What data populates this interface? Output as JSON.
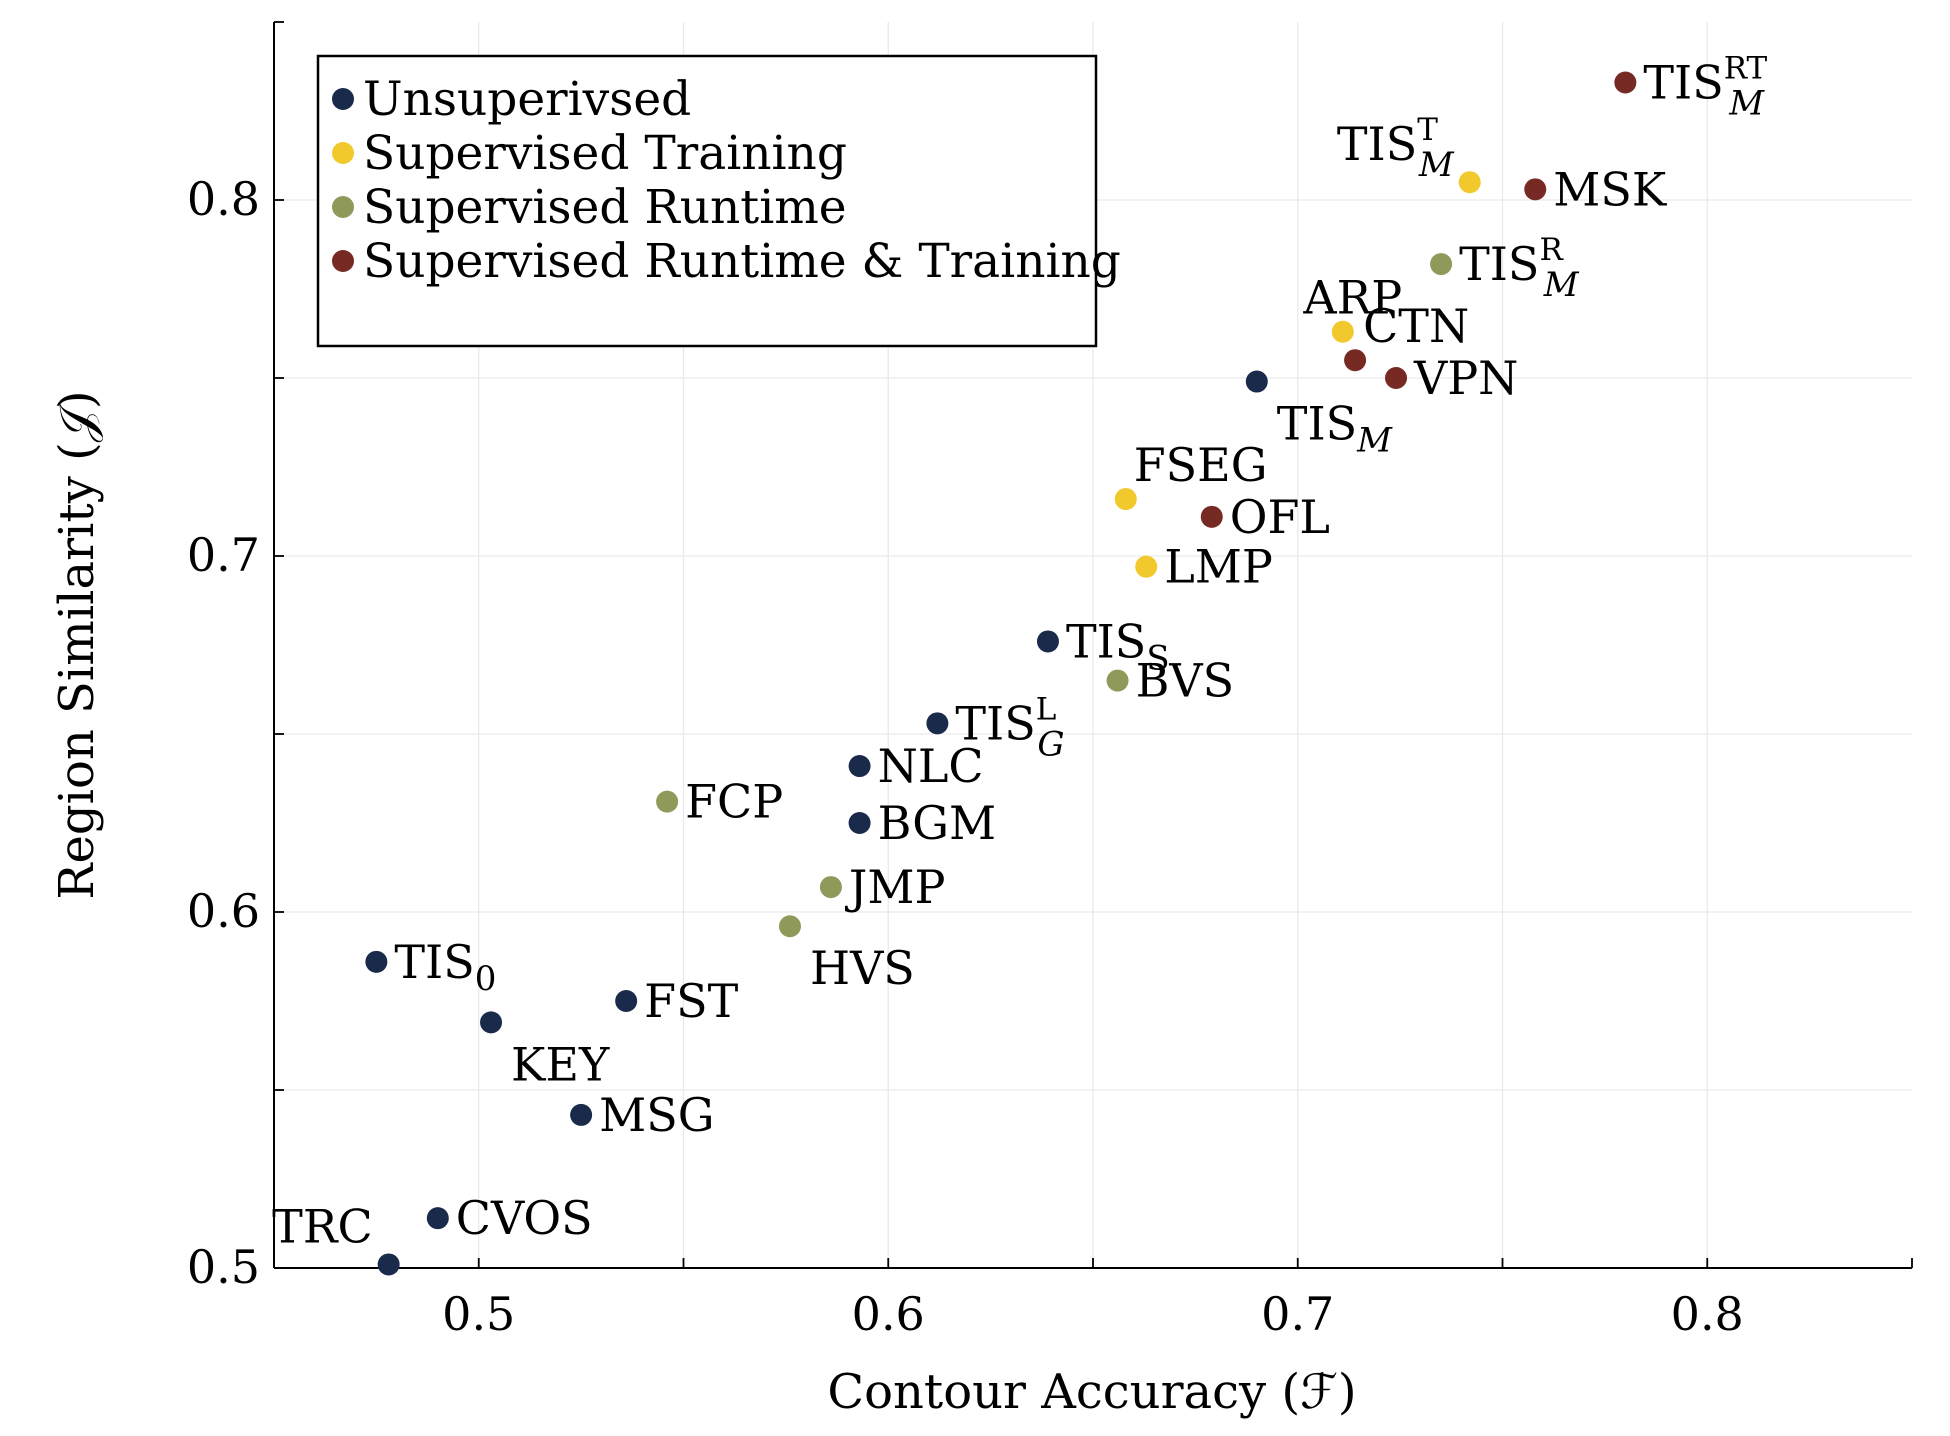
{
  "chart_data": {
    "type": "scatter",
    "xlabel": "Contour Accuracy (ℱ)",
    "ylabel": "Region Similarity (𝒥)",
    "xlim": [
      0.45,
      0.85
    ],
    "ylim": [
      0.5,
      0.85
    ],
    "xticks": [
      {
        "value": 0.5,
        "label": "0.5"
      },
      {
        "value": 0.6,
        "label": "0.6"
      },
      {
        "value": 0.7,
        "label": "0.7"
      },
      {
        "value": 0.8,
        "label": "0.8"
      }
    ],
    "yticks": [
      {
        "value": 0.5,
        "label": "0.5"
      },
      {
        "value": 0.6,
        "label": "0.6"
      },
      {
        "value": 0.7,
        "label": "0.7"
      },
      {
        "value": 0.8,
        "label": "0.8"
      }
    ],
    "minor_ticks_x": [
      0.55,
      0.65,
      0.75
    ],
    "minor_ticks_y": [
      0.55,
      0.65,
      0.75
    ],
    "grid": true,
    "legend_position": "top-left",
    "series": [
      {
        "name": "Unsuperivsed",
        "color": "#1a2a4a",
        "points": [
          {
            "x": 0.69,
            "y": 0.749,
            "label": "TIS",
            "sub": "M",
            "label_pos": "below-right"
          },
          {
            "x": 0.639,
            "y": 0.676,
            "label": "TIS",
            "sub": "S",
            "label_pos": "right"
          },
          {
            "x": 0.612,
            "y": 0.653,
            "label": "TIS",
            "sub": "G",
            "sup": "L",
            "label_pos": "right"
          },
          {
            "x": 0.593,
            "y": 0.641,
            "label": "NLC",
            "label_pos": "right"
          },
          {
            "x": 0.593,
            "y": 0.625,
            "label": "BGM",
            "label_pos": "right"
          },
          {
            "x": 0.475,
            "y": 0.586,
            "label": "TIS",
            "sub": "0",
            "label_pos": "right"
          },
          {
            "x": 0.536,
            "y": 0.575,
            "label": "FST",
            "label_pos": "right"
          },
          {
            "x": 0.503,
            "y": 0.569,
            "label": "KEY",
            "label_pos": "below-right"
          },
          {
            "x": 0.525,
            "y": 0.543,
            "label": "MSG",
            "label_pos": "right"
          },
          {
            "x": 0.49,
            "y": 0.514,
            "label": "CVOS",
            "label_pos": "right"
          },
          {
            "x": 0.478,
            "y": 0.501,
            "label": "TRC",
            "label_pos": "above-left"
          }
        ]
      },
      {
        "name": "Supervised Training",
        "color": "#f2c92c",
        "points": [
          {
            "x": 0.742,
            "y": 0.805,
            "label": "TIS",
            "sub": "M",
            "sup": "T",
            "label_pos": "above-left"
          },
          {
            "x": 0.711,
            "y": 0.763,
            "label": "ARP",
            "label_pos": "above"
          },
          {
            "x": 0.658,
            "y": 0.716,
            "label": "FSEG",
            "label_pos": "above-right"
          },
          {
            "x": 0.663,
            "y": 0.697,
            "label": "LMP",
            "label_pos": "right"
          }
        ]
      },
      {
        "name": "Supervised Runtime",
        "color": "#8f9a5a",
        "points": [
          {
            "x": 0.735,
            "y": 0.782,
            "label": "TIS",
            "sub": "M",
            "sup": "R",
            "label_pos": "right"
          },
          {
            "x": 0.656,
            "y": 0.665,
            "label": "BVS",
            "label_pos": "right"
          },
          {
            "x": 0.546,
            "y": 0.631,
            "label": "FCP",
            "label_pos": "right"
          },
          {
            "x": 0.586,
            "y": 0.607,
            "label": "JMP",
            "label_pos": "right"
          },
          {
            "x": 0.576,
            "y": 0.596,
            "label": "HVS",
            "label_pos": "below-right"
          }
        ]
      },
      {
        "name": "Supervised Runtime & Training",
        "color": "#772a24",
        "points": [
          {
            "x": 0.78,
            "y": 0.833,
            "label": "TIS",
            "sub": "M",
            "sup": "RT",
            "label_pos": "right"
          },
          {
            "x": 0.758,
            "y": 0.803,
            "label": "MSK",
            "label_pos": "right"
          },
          {
            "x": 0.714,
            "y": 0.755,
            "label": "CTN",
            "label_pos": "above-right"
          },
          {
            "x": 0.724,
            "y": 0.75,
            "label": "VPN",
            "label_pos": "right"
          },
          {
            "x": 0.679,
            "y": 0.711,
            "label": "OFL",
            "label_pos": "right"
          }
        ]
      }
    ]
  }
}
